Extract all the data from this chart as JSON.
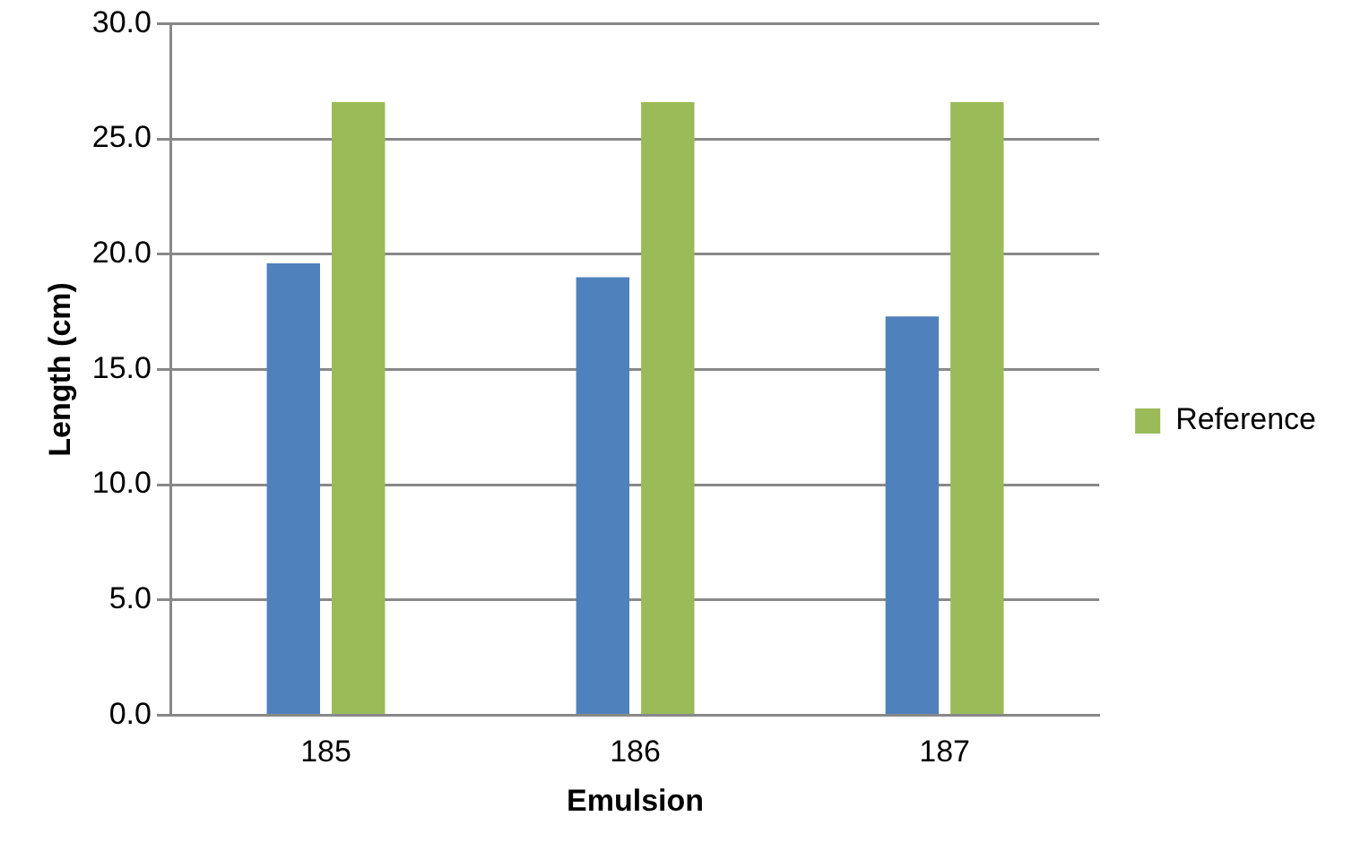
{
  "chart_data": {
    "type": "bar",
    "xlabel": "Emulsion",
    "ylabel": "Length (cm)",
    "categories": [
      "185",
      "186",
      "187"
    ],
    "series": [
      {
        "color": "#4f81bd",
        "values": [
          19.6,
          19.0,
          17.3
        ]
      },
      {
        "name": "Reference",
        "color": "#9bbb59",
        "values": [
          26.6,
          26.6,
          26.6
        ]
      }
    ],
    "ylim": [
      0,
      30
    ],
    "yticks": [
      {
        "value": 0,
        "label": "0.0"
      },
      {
        "value": 5,
        "label": "5.0"
      },
      {
        "value": 10,
        "label": "10.0"
      },
      {
        "value": 15,
        "label": "15.0"
      },
      {
        "value": 20,
        "label": "20.0"
      },
      {
        "value": 25,
        "label": "25.0"
      },
      {
        "value": 30,
        "label": "30.0"
      }
    ],
    "grid": "y",
    "legend": "right"
  }
}
